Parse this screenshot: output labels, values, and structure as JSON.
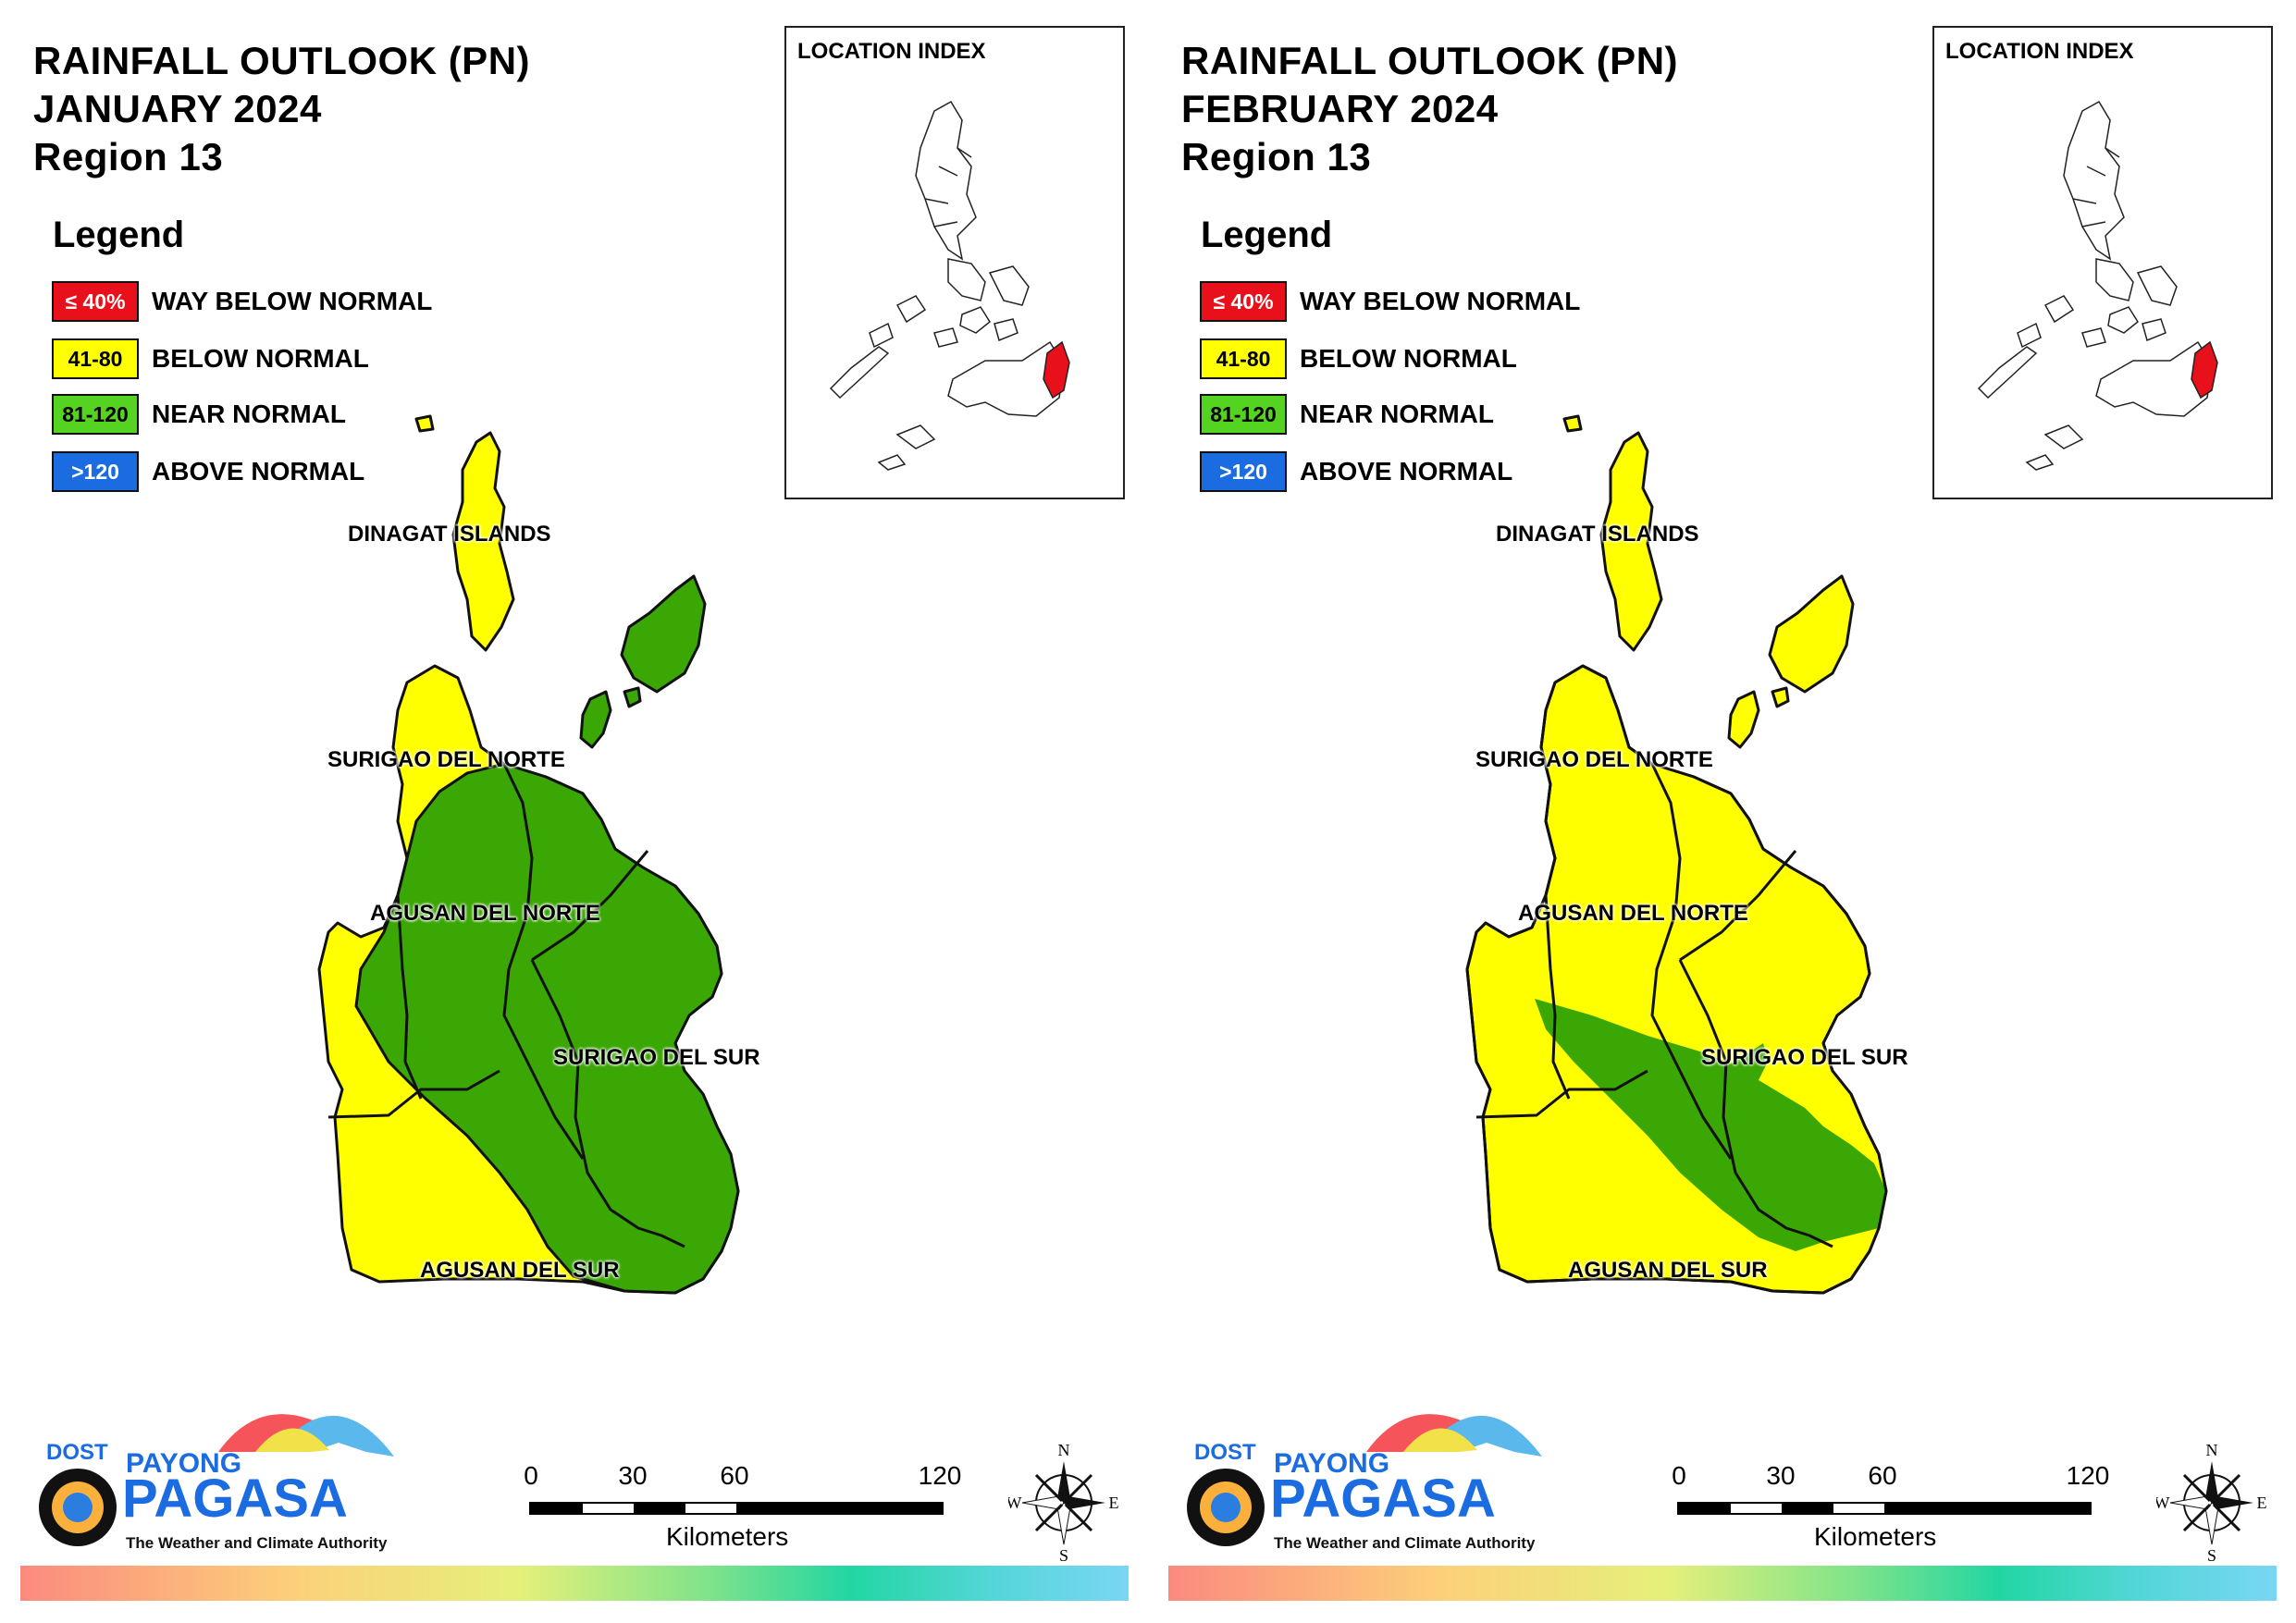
{
  "panels": [
    {
      "title_line1": "RAINFALL OUTLOOK (PN)",
      "title_line2": "JANUARY 2024",
      "title_line3": "Region 13"
    },
    {
      "title_line1": "RAINFALL OUTLOOK (PN)",
      "title_line2": "FEBRUARY 2024",
      "title_line3": "Region 13"
    }
  ],
  "legend": {
    "title": "Legend",
    "items": [
      {
        "range": "≤ 40%",
        "label": "WAY BELOW NORMAL",
        "color": "#e8101a",
        "text_color": "#ffffff"
      },
      {
        "range": "41-80",
        "label": "BELOW NORMAL",
        "color": "#ffff00",
        "text_color": "#000000"
      },
      {
        "range": "81-120",
        "label": "NEAR NORMAL",
        "color": "#55d321",
        "text_color": "#000000"
      },
      {
        "range": ">120",
        "label": "ABOVE NORMAL",
        "color": "#1a6ce0",
        "text_color": "#ffffff"
      }
    ]
  },
  "inset": {
    "title": "LOCATION INDEX",
    "highlight_color": "#e8101a"
  },
  "provinces": {
    "dinagat": "DINAGAT ISLANDS",
    "surigao_norte": "SURIGAO DEL NORTE",
    "agusan_norte": "AGUSAN DEL NORTE",
    "surigao_sur": "SURIGAO DEL SUR",
    "agusan_sur": "AGUSAN DEL SUR"
  },
  "map_colors": {
    "below_normal": "#ffff00",
    "near_normal": "#3aa705"
  },
  "logo": {
    "dost": "DOST",
    "payong": "PAYONG",
    "pagasa": "PAGASA",
    "tagline": "The Weather and Climate Authority"
  },
  "scale": {
    "ticks": [
      "0",
      "30",
      "60",
      "120"
    ],
    "unit": "Kilometers"
  },
  "compass": {
    "n": "N",
    "s": "S",
    "e": "E",
    "w": "W"
  }
}
